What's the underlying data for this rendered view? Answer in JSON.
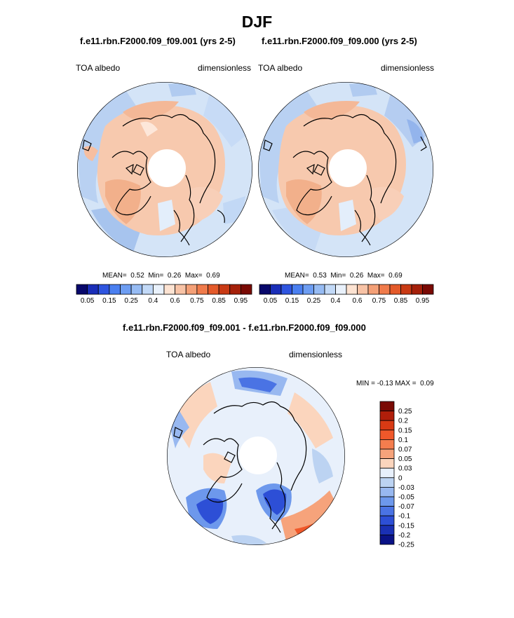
{
  "page": {
    "title": "DJF",
    "panels": [
      {
        "run": "f.e11.rbn.F2000.f09_f09.001 (yrs 2-5)",
        "variable": "TOA albedo",
        "units": "dimensionless",
        "stats": {
          "mean_label": "MEAN=",
          "mean": "0.52",
          "min_label": "Min=",
          "min": "0.26",
          "max_label": "Max=",
          "max": "0.69"
        }
      },
      {
        "run": "f.e11.rbn.F2000.f09_f09.000 (yrs 2-5)",
        "variable": "TOA albedo",
        "units": "dimensionless",
        "stats": {
          "mean_label": "MEAN=",
          "mean": "0.53",
          "min_label": "Min=",
          "min": "0.26",
          "max_label": "Max=",
          "max": "0.69"
        }
      }
    ],
    "colorbar": {
      "colors": [
        "#08086b",
        "#1a2eb8",
        "#2f55e0",
        "#4a7ff0",
        "#6d9df2",
        "#96bbf3",
        "#c2d9f7",
        "#e9f1fb",
        "#fde3d2",
        "#f8c3a6",
        "#f4a077",
        "#f07b4b",
        "#e45a2a",
        "#c93a14",
        "#a5200a",
        "#7a0a04"
      ],
      "labels": [
        "0.05",
        "0.15",
        "0.25",
        "0.4",
        "0.6",
        "0.75",
        "0.85",
        "0.95"
      ]
    },
    "diff": {
      "title": "f.e11.rbn.F2000.f09_f09.001 - f.e11.rbn.F2000.f09_f09.000",
      "variable": "TOA albedo",
      "units": "dimensionless",
      "stats": {
        "min_label": "MIN =",
        "min": "-0.13",
        "max_label": "MAX =",
        "max": "0.09"
      },
      "colorbar": {
        "colors": [
          "#7a0a04",
          "#b01e0a",
          "#d83a14",
          "#f0582a",
          "#f47d4e",
          "#f6a37b",
          "#fbd5bd",
          "#e8f0fb",
          "#bcd3f2",
          "#98b8f0",
          "#6d98ec",
          "#4a73e4",
          "#2d4fd6",
          "#1a30b4",
          "#0a1286"
        ],
        "labels": [
          "0.25",
          "0.2",
          "0.15",
          "0.1",
          "0.07",
          "0.05",
          "0.03",
          "0",
          "-0.03",
          "-0.05",
          "-0.07",
          "-0.1",
          "-0.15",
          "-0.2",
          "-0.25"
        ]
      }
    }
  }
}
